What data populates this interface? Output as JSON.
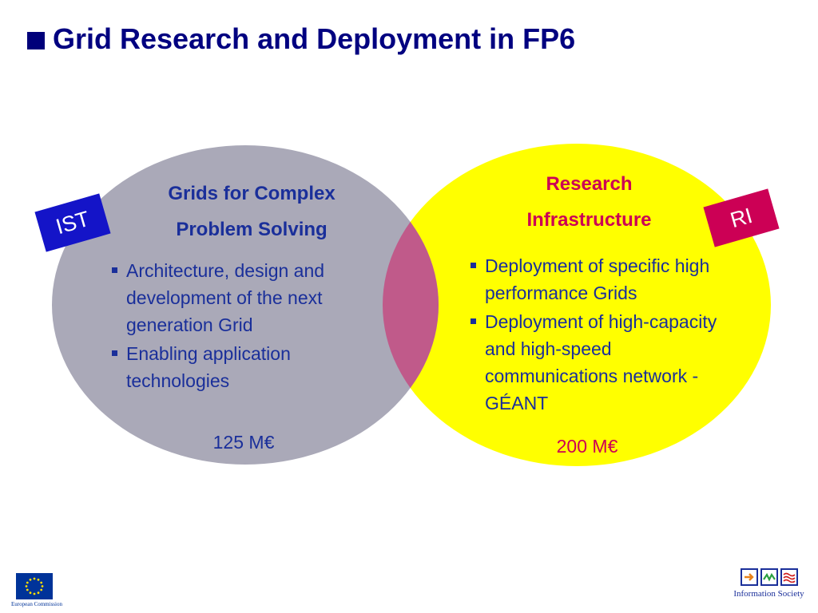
{
  "slide": {
    "title": "Grid Research and Deployment in FP6"
  },
  "left": {
    "tag": "IST",
    "heading_line1": "Grids for Complex",
    "heading_line2": "Problem Solving",
    "bullets": [
      "Architecture, design and development of the next generation Grid",
      "Enabling application technologies"
    ],
    "budget": "125 M€",
    "color": "#aaa9b8"
  },
  "right": {
    "tag": "RI",
    "heading_line1": "Research",
    "heading_line2": "Infrastructure",
    "bullets": [
      "Deployment of specific high performance Grids",
      "Deployment of high-capacity and high-speed communications network - GÉANT"
    ],
    "budget": "200 M€",
    "color": "#ffff00"
  },
  "overlap_color": "#c05a8a",
  "footer": {
    "left_logo_caption": "European Commission",
    "right_logo_caption": "Information Society",
    "icons": [
      "arrow-icon",
      "wave-icon",
      "approx-icon"
    ]
  }
}
